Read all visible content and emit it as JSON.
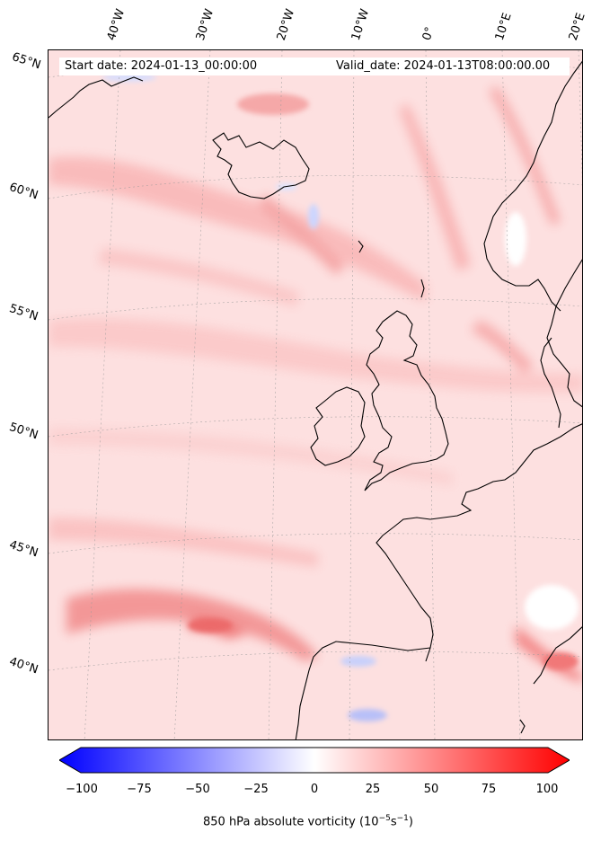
{
  "header": {
    "start_date": "Start date: 2024-01-13_00:00:00",
    "valid_date": "Valid_date: 2024-01-13T08:00:00.00"
  },
  "lon_labels": [
    "40°W",
    "30°W",
    "20°W",
    "10°W",
    "0°",
    "10°E",
    "20°E"
  ],
  "lat_labels": [
    "65°N",
    "60°N",
    "55°N",
    "50°N",
    "45°N",
    "40°N"
  ],
  "colorbar": {
    "ticks": [
      "−100",
      "−75",
      "−50",
      "−25",
      "0",
      "25",
      "50",
      "75",
      "100"
    ],
    "label_main": "850 hPa absolute vorticity (10",
    "label_exp1": "−5",
    "label_mid": "s",
    "label_exp2": "−1",
    "label_end": ")",
    "min": -100,
    "max": 100,
    "colors": {
      "negative": "#0000ff",
      "zero": "#ffffff",
      "positive": "#ff0000"
    }
  },
  "map": {
    "field_background": "#fde3e3",
    "land_outline_color": "#000000"
  }
}
